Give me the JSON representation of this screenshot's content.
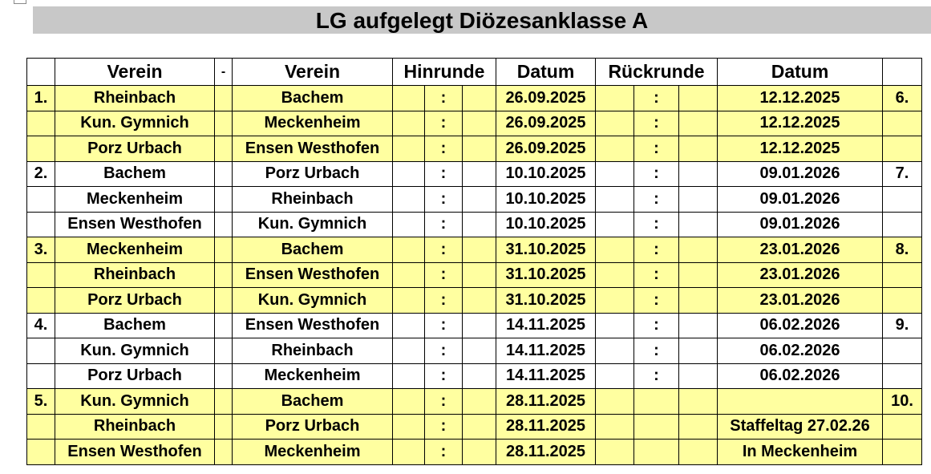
{
  "title": "LG aufgelegt Diözesanklasse A",
  "headers": {
    "verein_home": "Verein",
    "dash": "-",
    "verein_away": "Verein",
    "hinrunde": "Hinrunde",
    "datum_hin": "Datum",
    "rueckrunde": "Rückrunde",
    "datum_rueck": "Datum"
  },
  "rows": [
    {
      "round": "1.",
      "home": "Rheinbach",
      "away": "Bachem",
      "hin_sep": ":",
      "date_hin": "26.09.2025",
      "rueck_sep": ":",
      "date_rueck": "12.12.2025",
      "round_rueck": "6.",
      "hl": true
    },
    {
      "round": "",
      "home": "Kun. Gymnich",
      "away": "Meckenheim",
      "hin_sep": ":",
      "date_hin": "26.09.2025",
      "rueck_sep": ":",
      "date_rueck": "12.12.2025",
      "round_rueck": "",
      "hl": true
    },
    {
      "round": "",
      "home": "Porz Urbach",
      "away": "Ensen Westhofen",
      "hin_sep": ":",
      "date_hin": "26.09.2025",
      "rueck_sep": ":",
      "date_rueck": "12.12.2025",
      "round_rueck": "",
      "hl": true
    },
    {
      "round": "2.",
      "home": "Bachem",
      "away": "Porz Urbach",
      "hin_sep": ":",
      "date_hin": "10.10.2025",
      "rueck_sep": ":",
      "date_rueck": "09.01.2026",
      "round_rueck": "7.",
      "hl": false
    },
    {
      "round": "",
      "home": "Meckenheim",
      "away": "Rheinbach",
      "hin_sep": ":",
      "date_hin": "10.10.2025",
      "rueck_sep": ":",
      "date_rueck": "09.01.2026",
      "round_rueck": "",
      "hl": false
    },
    {
      "round": "",
      "home": "Ensen Westhofen",
      "away": "Kun. Gymnich",
      "hin_sep": ":",
      "date_hin": "10.10.2025",
      "rueck_sep": ":",
      "date_rueck": "09.01.2026",
      "round_rueck": "",
      "hl": false
    },
    {
      "round": "3.",
      "home": "Meckenheim",
      "away": "Bachem",
      "hin_sep": ":",
      "date_hin": "31.10.2025",
      "rueck_sep": ":",
      "date_rueck": "23.01.2026",
      "round_rueck": "8.",
      "hl": true
    },
    {
      "round": "",
      "home": "Rheinbach",
      "away": "Ensen Westhofen",
      "hin_sep": ":",
      "date_hin": "31.10.2025",
      "rueck_sep": ":",
      "date_rueck": "23.01.2026",
      "round_rueck": "",
      "hl": true
    },
    {
      "round": "",
      "home": "Porz Urbach",
      "away": "Kun. Gymnich",
      "hin_sep": ":",
      "date_hin": "31.10.2025",
      "rueck_sep": ":",
      "date_rueck": "23.01.2026",
      "round_rueck": "",
      "hl": true
    },
    {
      "round": "4.",
      "home": "Bachem",
      "away": "Ensen Westhofen",
      "hin_sep": ":",
      "date_hin": "14.11.2025",
      "rueck_sep": ":",
      "date_rueck": "06.02.2026",
      "round_rueck": "9.",
      "hl": false
    },
    {
      "round": "",
      "home": "Kun. Gymnich",
      "away": "Rheinbach",
      "hin_sep": ":",
      "date_hin": "14.11.2025",
      "rueck_sep": ":",
      "date_rueck": "06.02.2026",
      "round_rueck": "",
      "hl": false
    },
    {
      "round": "",
      "home": "Porz Urbach",
      "away": "Meckenheim",
      "hin_sep": ":",
      "date_hin": "14.11.2025",
      "rueck_sep": ":",
      "date_rueck": "06.02.2026",
      "round_rueck": "",
      "hl": false
    },
    {
      "round": "5.",
      "home": "Kun. Gymnich",
      "away": "Bachem",
      "hin_sep": ":",
      "date_hin": "28.11.2025",
      "rueck_sep": "",
      "date_rueck": "",
      "round_rueck": "10.",
      "hl": true
    },
    {
      "round": "",
      "home": "Rheinbach",
      "away": "Porz Urbach",
      "hin_sep": ":",
      "date_hin": "28.11.2025",
      "rueck_sep": "",
      "date_rueck": "Staffeltag 27.02.26",
      "round_rueck": "",
      "hl": true,
      "note": true
    },
    {
      "round": "",
      "home": "Ensen Westhofen",
      "away": "Meckenheim",
      "hin_sep": ":",
      "date_hin": "28.11.2025",
      "rueck_sep": "",
      "date_rueck": "In Meckenheim",
      "round_rueck": "",
      "hl": true,
      "note": true
    }
  ]
}
